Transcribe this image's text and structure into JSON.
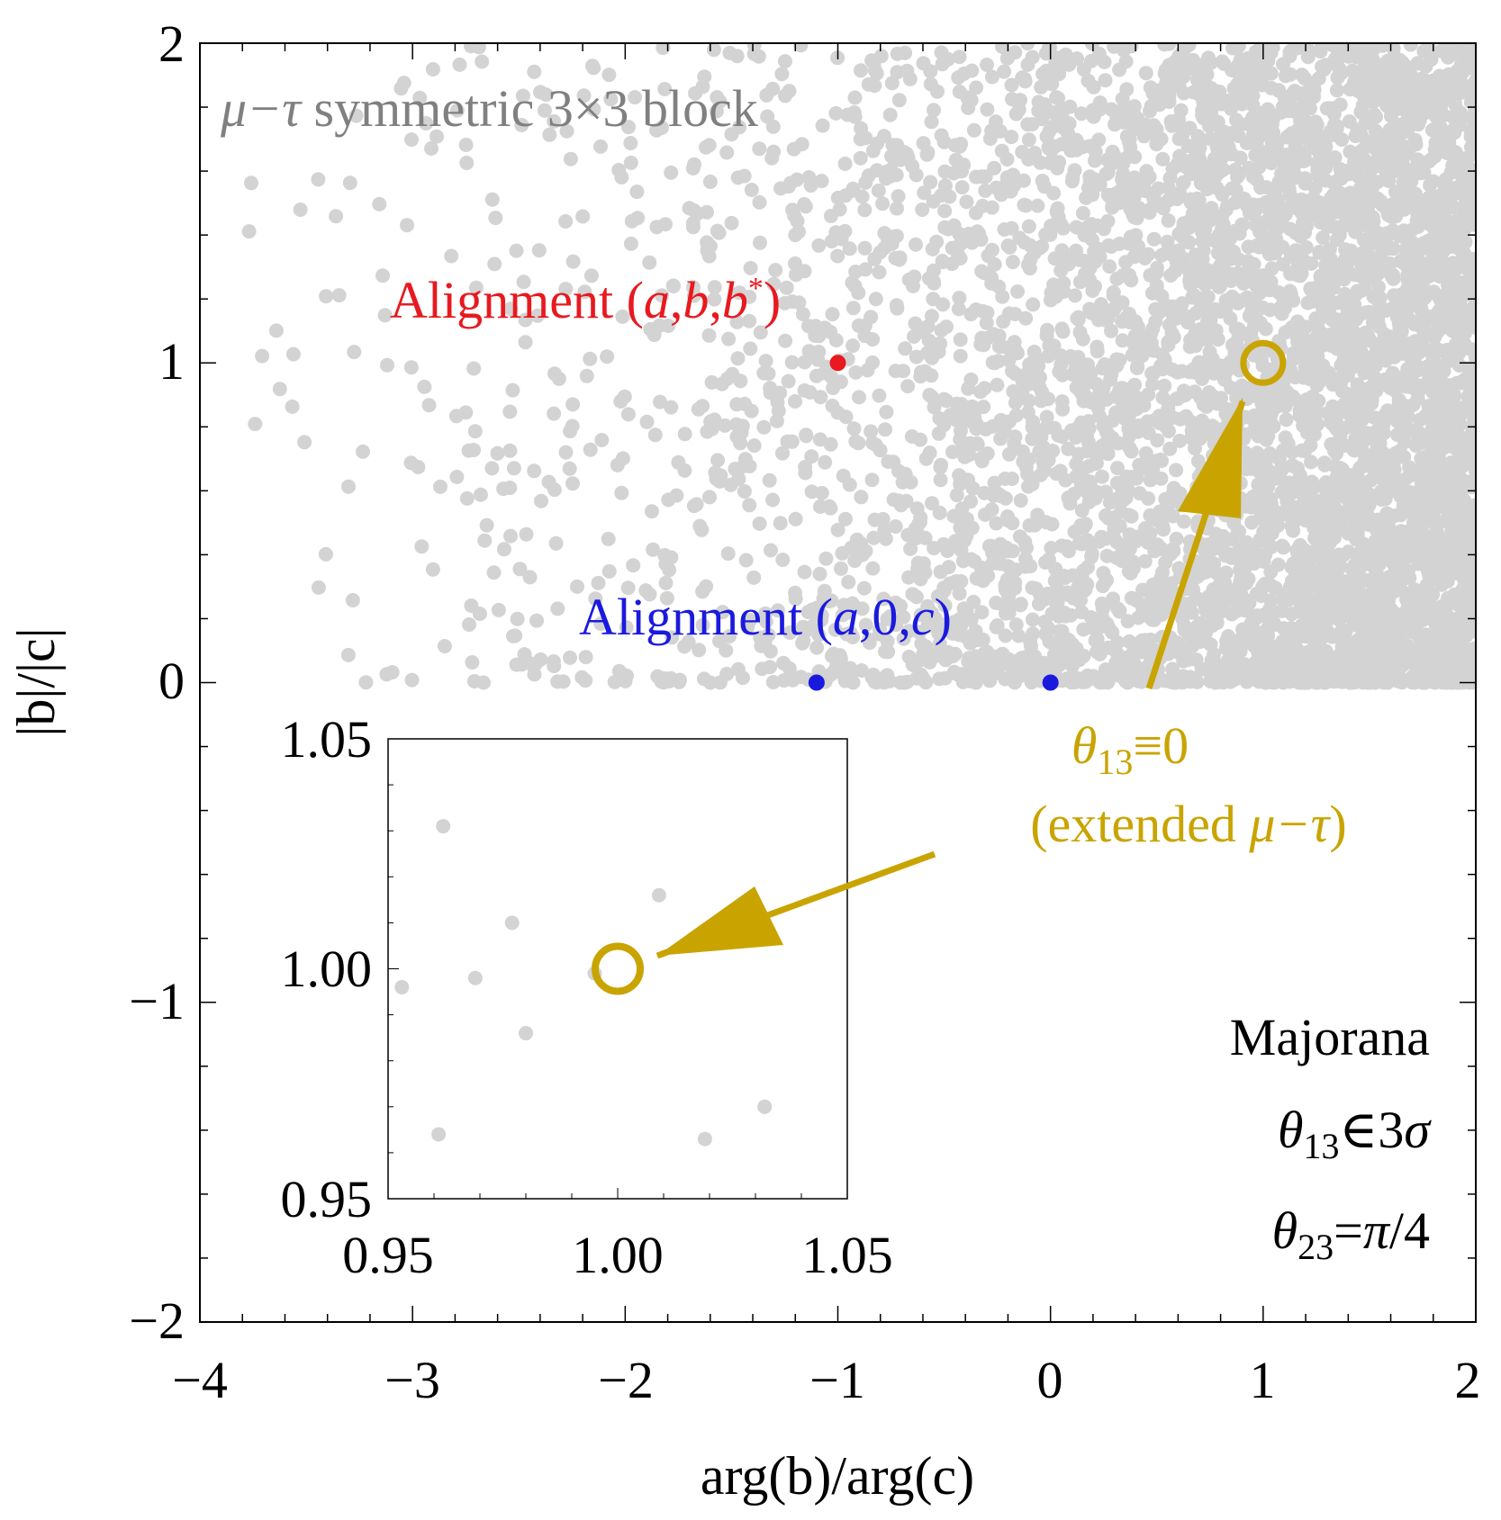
{
  "chart_data": {
    "type": "scatter",
    "title": "",
    "xlabel": "arg(b)/arg(c)",
    "ylabel": "|b|/|c|",
    "xlim": [
      -4,
      2
    ],
    "ylim": [
      -2,
      2
    ],
    "x_ticks": [
      -4,
      -3,
      -2,
      -1,
      0,
      1,
      2
    ],
    "y_ticks": [
      -2,
      -1,
      0,
      1,
      2
    ],
    "x_tick_labels": [
      "−4",
      "−3",
      "−2",
      "−1",
      "0",
      "1",
      "2"
    ],
    "y_tick_labels": [
      "−2",
      "−1",
      "0",
      "1",
      "2"
    ],
    "series": [
      {
        "name": "scan points (gray)",
        "color": "#d3d3d3",
        "description_region": "y from 0 to 2, density increasing toward x = 2"
      },
      {
        "name": "Alignment (a,b,b*)",
        "color": "#e8191f",
        "points": [
          {
            "x": -1.0,
            "y": 1.0
          }
        ]
      },
      {
        "name": "Alignment (a,0,c)",
        "color": "#1a1adf",
        "points": [
          {
            "x": -1.1,
            "y": 0.0
          },
          {
            "x": 0.0,
            "y": 0.0
          }
        ]
      },
      {
        "name": "θ13≡0 (extended μ−τ)",
        "color": "#c9a400",
        "marker": "open-circle",
        "points": [
          {
            "x": 1.0,
            "y": 1.0
          }
        ]
      }
    ],
    "annotations": {
      "block_title": [
        "μ−τ",
        " symmetric 3×3 block"
      ],
      "red_label": [
        "Alignment (",
        "a",
        ",",
        "b",
        ",",
        "b",
        "*",
        ")"
      ],
      "blue_label": [
        "Alignment (",
        "a",
        ",0,",
        "c",
        ")"
      ],
      "gold_label_line1": [
        "θ",
        "13",
        "≡0"
      ],
      "gold_label_line2": [
        "(extended ",
        "μ−τ",
        ")"
      ],
      "majorana": "Majorana",
      "theta13_condition": [
        "θ",
        "13",
        "∈3",
        "σ"
      ],
      "theta23_condition": [
        "θ",
        "23",
        "=",
        "π",
        "/4"
      ]
    },
    "inset": {
      "xlim": [
        0.95,
        1.05
      ],
      "ylim": [
        0.95,
        1.05
      ],
      "x_tick_labels": [
        "0.95",
        "1.00",
        "1.05"
      ],
      "y_tick_labels": [
        "0.95",
        "1.00",
        "1.05"
      ],
      "gray_points": [
        {
          "x": 0.962,
          "y": 1.031
        },
        {
          "x": 0.953,
          "y": 0.996
        },
        {
          "x": 0.969,
          "y": 0.998
        },
        {
          "x": 0.977,
          "y": 1.01
        },
        {
          "x": 0.995,
          "y": 0.999
        },
        {
          "x": 0.98,
          "y": 0.986
        },
        {
          "x": 1.009,
          "y": 1.016
        },
        {
          "x": 1.032,
          "y": 0.97
        },
        {
          "x": 0.961,
          "y": 0.964
        },
        {
          "x": 1.019,
          "y": 0.963
        }
      ],
      "highlight": {
        "x": 1.0,
        "y": 1.0
      }
    }
  },
  "colors": {
    "gray": "#d3d3d3",
    "red": "#e8191f",
    "blue": "#1a1adf",
    "gold": "#c9a400",
    "block_text": "#808080"
  }
}
